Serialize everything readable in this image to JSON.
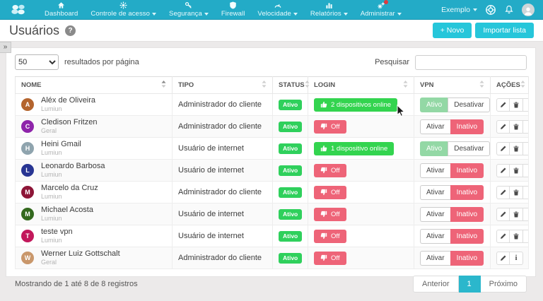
{
  "theme": {
    "navbar": "#23abc7",
    "accent": "#26c6da",
    "tealActive": "#2bb7cc",
    "statusGreen": "#2fd05c",
    "loginGreen": "#33d44f",
    "pinkRed": "#ee6478",
    "vpnGreen": "#93d8a5"
  },
  "navbar": {
    "items": [
      {
        "label": "Dashboard",
        "icon": "home-icon",
        "caret": false,
        "badge": false
      },
      {
        "label": "Controle de acesso",
        "icon": "fan-icon",
        "caret": true,
        "badge": false
      },
      {
        "label": "Segurança",
        "icon": "key-icon",
        "caret": true,
        "badge": false
      },
      {
        "label": "Firewall",
        "icon": "shield-icon",
        "caret": false,
        "badge": false
      },
      {
        "label": "Velocidade",
        "icon": "gauge-icon",
        "caret": true,
        "badge": false
      },
      {
        "label": "Relatórios",
        "icon": "bar-chart-icon",
        "caret": true,
        "badge": false
      },
      {
        "label": "Administrar",
        "icon": "gears-icon",
        "caret": true,
        "badge": true
      }
    ],
    "account_label": "Exemplo"
  },
  "page": {
    "title": "Usuários",
    "help_glyph": "?"
  },
  "toolbar": {
    "new_label": "+ Novo",
    "import_label": "Importar lista"
  },
  "ui": {
    "collapse_glyph": "»"
  },
  "controls": {
    "page_size": "50",
    "page_size_label": "resultados por página",
    "search_label": "Pesquisar",
    "search_value": ""
  },
  "table": {
    "headers": [
      "NOME",
      "TIPO",
      "STATUS",
      "LOGIN",
      "VPN",
      "AÇÕES"
    ],
    "rows": [
      {
        "name": "Aléx de Oliveira",
        "group": "Lumiun",
        "type": "Administrador do cliente",
        "status": "Ativo",
        "login": {
          "state": "on",
          "text": "2 dispositivos online"
        },
        "vpn": {
          "state": "on",
          "left": "Ativo",
          "right": "Desativar"
        },
        "actions": [
          "edit",
          "delete",
          "info"
        ],
        "avatar_color": "#b4642d"
      },
      {
        "name": "Cledison Fritzen",
        "group": "Geral",
        "type": "Administrador do cliente",
        "status": "Ativo",
        "login": {
          "state": "off",
          "text": "Off"
        },
        "vpn": {
          "state": "off",
          "left": "Ativar",
          "right": "Inativo"
        },
        "actions": [
          "edit",
          "delete",
          "info"
        ],
        "avatar_color": "#8e24aa"
      },
      {
        "name": "Heini Gmail",
        "group": "Lumiun",
        "type": "Usuário de internet",
        "status": "Ativo",
        "login": {
          "state": "on",
          "text": "1 dispositivo online"
        },
        "vpn": {
          "state": "on",
          "left": "Ativo",
          "right": "Desativar"
        },
        "actions": [
          "edit",
          "delete",
          "info"
        ],
        "avatar_color": "#8fa4ae"
      },
      {
        "name": "Leonardo Barbosa",
        "group": "Lumiun",
        "type": "Usuário de internet",
        "status": "Ativo",
        "login": {
          "state": "off",
          "text": "Off"
        },
        "vpn": {
          "state": "off",
          "left": "Ativar",
          "right": "Inativo"
        },
        "actions": [
          "edit",
          "delete",
          "info"
        ],
        "avatar_color": "#283593"
      },
      {
        "name": "Marcelo da Cruz",
        "group": "Lumiun",
        "type": "Administrador do cliente",
        "status": "Ativo",
        "login": {
          "state": "off",
          "text": "Off"
        },
        "vpn": {
          "state": "off",
          "left": "Ativar",
          "right": "Inativo"
        },
        "actions": [
          "edit",
          "delete",
          "info"
        ],
        "avatar_color": "#8d1537"
      },
      {
        "name": "Michael Acosta",
        "group": "Lumiun",
        "type": "Usuário de internet",
        "status": "Ativo",
        "login": {
          "state": "off",
          "text": "Off"
        },
        "vpn": {
          "state": "off",
          "left": "Ativar",
          "right": "Inativo"
        },
        "actions": [
          "edit",
          "delete",
          "info"
        ],
        "avatar_color": "#33691e"
      },
      {
        "name": "teste vpn",
        "group": "Lumiun",
        "type": "Usuário de internet",
        "status": "Ativo",
        "login": {
          "state": "off",
          "text": "Off"
        },
        "vpn": {
          "state": "off",
          "left": "Ativar",
          "right": "Inativo"
        },
        "actions": [
          "edit",
          "delete",
          "info"
        ],
        "avatar_color": "#c2185b"
      },
      {
        "name": "Werner Luiz Gottschalt",
        "group": "Geral",
        "type": "Administrador do cliente",
        "status": "Ativo",
        "login": {
          "state": "off",
          "text": "Off"
        },
        "vpn": {
          "state": "off",
          "left": "Ativar",
          "right": "Inativo"
        },
        "actions": [
          "edit",
          "info"
        ],
        "avatar_color": "#c9976b"
      }
    ]
  },
  "footer": {
    "summary": "Mostrando de 1 até 8 de 8 registros"
  },
  "pagination": {
    "prev": "Anterior",
    "current": "1",
    "next": "Próximo"
  }
}
